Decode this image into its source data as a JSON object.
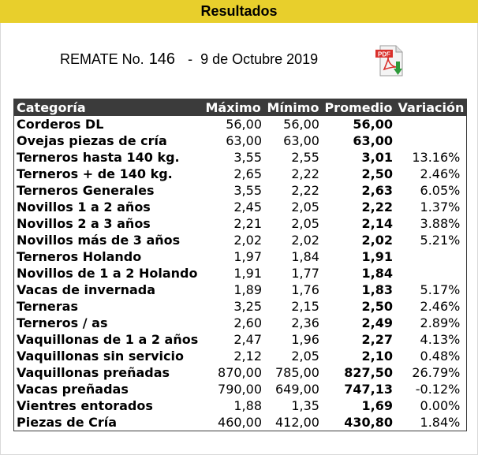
{
  "header": {
    "title": "Resultados"
  },
  "remate": {
    "label": "REMATE No.",
    "number": "146",
    "separator": "-",
    "date": "9 de Octubre 2019"
  },
  "pdf_icon": {
    "name": "pdf-download-icon",
    "text": "PDF"
  },
  "table": {
    "columns": [
      "Categoría",
      "Máximo",
      "Mínimo",
      "Promedio",
      "Variación"
    ],
    "rows": [
      {
        "categoria": "Corderos DL",
        "maximo": "56,00",
        "minimo": "56,00",
        "promedio": "56,00",
        "variacion": ""
      },
      {
        "categoria": "Ovejas piezas de cría",
        "maximo": "63,00",
        "minimo": "63,00",
        "promedio": "63,00",
        "variacion": ""
      },
      {
        "categoria": "Terneros hasta 140 kg.",
        "maximo": "3,55",
        "minimo": "2,55",
        "promedio": "3,01",
        "variacion": "13.16%"
      },
      {
        "categoria": "Terneros + de 140 kg.",
        "maximo": "2,65",
        "minimo": "2,22",
        "promedio": "2,50",
        "variacion": "2.46%"
      },
      {
        "categoria": "Terneros Generales",
        "maximo": "3,55",
        "minimo": "2,22",
        "promedio": "2,63",
        "variacion": "6.05%"
      },
      {
        "categoria": "Novillos 1 a 2 años",
        "maximo": "2,45",
        "minimo": "2,05",
        "promedio": "2,22",
        "variacion": "1.37%"
      },
      {
        "categoria": "Novillos 2 a 3 años",
        "maximo": "2,21",
        "minimo": "2,05",
        "promedio": "2,14",
        "variacion": "3.88%"
      },
      {
        "categoria": "Novillos más de 3 años",
        "maximo": "2,02",
        "minimo": "2,02",
        "promedio": "2,02",
        "variacion": "5.21%"
      },
      {
        "categoria": "Terneros Holando",
        "maximo": "1,97",
        "minimo": "1,84",
        "promedio": "1,91",
        "variacion": ""
      },
      {
        "categoria": "Novillos de 1 a 2 Holando",
        "maximo": "1,91",
        "minimo": "1,77",
        "promedio": "1,84",
        "variacion": ""
      },
      {
        "categoria": "Vacas de invernada",
        "maximo": "1,89",
        "minimo": "1,76",
        "promedio": "1,83",
        "variacion": "5.17%"
      },
      {
        "categoria": "Terneras",
        "maximo": "3,25",
        "minimo": "2,15",
        "promedio": "2,50",
        "variacion": "2.46%"
      },
      {
        "categoria": "Terneros / as",
        "maximo": "2,60",
        "minimo": "2,36",
        "promedio": "2,49",
        "variacion": "2.89%"
      },
      {
        "categoria": "Vaquillonas de 1 a 2 años",
        "maximo": "2,47",
        "minimo": "1,96",
        "promedio": "2,27",
        "variacion": "4.13%"
      },
      {
        "categoria": "Vaquillonas sin servicio",
        "maximo": "2,12",
        "minimo": "2,05",
        "promedio": "2,10",
        "variacion": "0.48%"
      },
      {
        "categoria": "Vaquillonas preñadas",
        "maximo": "870,00",
        "minimo": "785,00",
        "promedio": "827,50",
        "variacion": "26.79%"
      },
      {
        "categoria": "Vacas preñadas",
        "maximo": "790,00",
        "minimo": "649,00",
        "promedio": "747,13",
        "variacion": "-0.12%"
      },
      {
        "categoria": "Vientres entorados",
        "maximo": "1,88",
        "minimo": "1,35",
        "promedio": "1,69",
        "variacion": "0.00%"
      },
      {
        "categoria": "Piezas de Cría",
        "maximo": "460,00",
        "minimo": "412,00",
        "promedio": "430,80",
        "variacion": "1.84%"
      }
    ]
  },
  "colors": {
    "banner": "#e8cf2c",
    "header_row": "#3b3b3b",
    "pdf_red": "#d9302b",
    "arrow_green": "#2e9a3a"
  }
}
